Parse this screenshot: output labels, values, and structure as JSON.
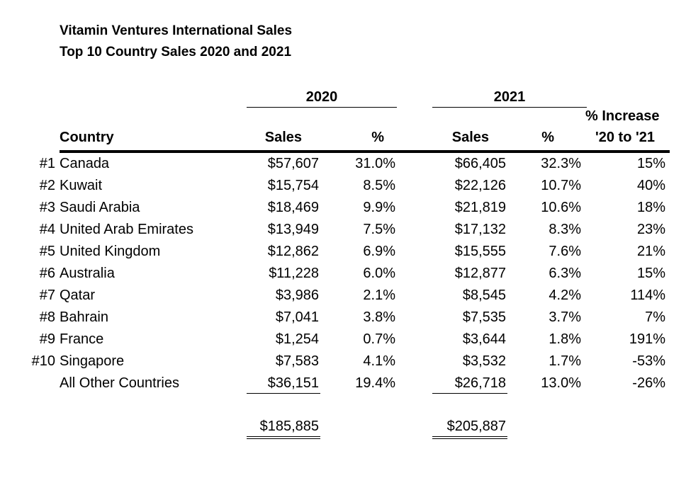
{
  "title_line1": "Vitamin Ventures International Sales",
  "title_line2": "Top 10 Country Sales 2020 and 2021",
  "headers": {
    "year_2020": "2020",
    "year_2021": "2021",
    "country": "Country",
    "sales_2020": "Sales",
    "pct_2020": "%",
    "sales_2021": "Sales",
    "pct_2021": "%",
    "increase_line1": "% Increase",
    "increase_line2": "'20 to '21"
  },
  "rows": [
    {
      "rank": "#1",
      "country": "Canada",
      "sales_2020": "$57,607",
      "pct_2020": "31.0%",
      "sales_2021": "$66,405",
      "pct_2021": "32.3%",
      "increase": "15%"
    },
    {
      "rank": "#2",
      "country": "Kuwait",
      "sales_2020": "$15,754",
      "pct_2020": "8.5%",
      "sales_2021": "$22,126",
      "pct_2021": "10.7%",
      "increase": "40%"
    },
    {
      "rank": "#3",
      "country": "Saudi Arabia",
      "sales_2020": "$18,469",
      "pct_2020": "9.9%",
      "sales_2021": "$21,819",
      "pct_2021": "10.6%",
      "increase": "18%"
    },
    {
      "rank": "#4",
      "country": "United Arab Emirates",
      "sales_2020": "$13,949",
      "pct_2020": "7.5%",
      "sales_2021": "$17,132",
      "pct_2021": "8.3%",
      "increase": "23%"
    },
    {
      "rank": "#5",
      "country": "United Kingdom",
      "sales_2020": "$12,862",
      "pct_2020": "6.9%",
      "sales_2021": "$15,555",
      "pct_2021": "7.6%",
      "increase": "21%"
    },
    {
      "rank": "#6",
      "country": "Australia",
      "sales_2020": "$11,228",
      "pct_2020": "6.0%",
      "sales_2021": "$12,877",
      "pct_2021": "6.3%",
      "increase": "15%"
    },
    {
      "rank": "#7",
      "country": "Qatar",
      "sales_2020": "$3,986",
      "pct_2020": "2.1%",
      "sales_2021": "$8,545",
      "pct_2021": "4.2%",
      "increase": "114%"
    },
    {
      "rank": "#8",
      "country": "Bahrain",
      "sales_2020": "$7,041",
      "pct_2020": "3.8%",
      "sales_2021": "$7,535",
      "pct_2021": "3.7%",
      "increase": "7%"
    },
    {
      "rank": "#9",
      "country": "France",
      "sales_2020": "$1,254",
      "pct_2020": "0.7%",
      "sales_2021": "$3,644",
      "pct_2021": "1.8%",
      "increase": "191%"
    },
    {
      "rank": "#10",
      "country": "Singapore",
      "sales_2020": "$7,583",
      "pct_2020": "4.1%",
      "sales_2021": "$3,532",
      "pct_2021": "1.7%",
      "increase": "-53%"
    },
    {
      "rank": "",
      "country": "All Other Countries",
      "sales_2020": "$36,151",
      "pct_2020": "19.4%",
      "sales_2021": "$26,718",
      "pct_2021": "13.0%",
      "increase": "-26%"
    }
  ],
  "totals": {
    "sales_2020": "$185,885",
    "sales_2021": "$205,887"
  }
}
